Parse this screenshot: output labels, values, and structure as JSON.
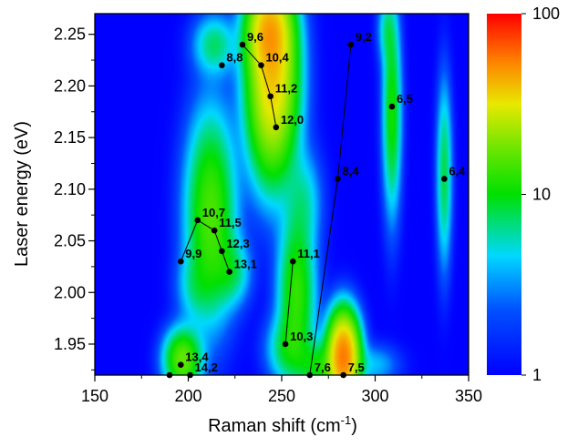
{
  "chart_data": {
    "type": "heatmap",
    "xlabel": "Raman shift (cm",
    "xlabel_sup": "-1",
    "xlabel_end": ")",
    "ylabel": "Laser energy (eV)",
    "xlim": [
      150,
      350
    ],
    "ylim": [
      1.92,
      2.27
    ],
    "x_ticks": [
      "150",
      "200",
      "250",
      "300",
      "350"
    ],
    "x_tick_values": [
      150,
      200,
      250,
      300,
      350
    ],
    "y_ticks": [
      "1.95",
      "2.00",
      "2.05",
      "2.10",
      "2.15",
      "2.20",
      "2.25"
    ],
    "y_tick_values": [
      1.95,
      2.0,
      2.05,
      2.1,
      2.15,
      2.2,
      2.25
    ],
    "colorbar": {
      "scale": "log",
      "min": 1,
      "max": 100,
      "tick_labels": [
        "1",
        "10",
        "100"
      ],
      "tick_values": [
        1,
        10,
        100
      ]
    },
    "points": [
      {
        "label": "9,6",
        "x": 229,
        "y": 2.24
      },
      {
        "label": "8,8",
        "x": 218,
        "y": 2.22
      },
      {
        "label": "10,4",
        "x": 239,
        "y": 2.22
      },
      {
        "label": "11,2",
        "x": 244,
        "y": 2.19
      },
      {
        "label": "12,0",
        "x": 247,
        "y": 2.16
      },
      {
        "label": "9,2",
        "x": 287,
        "y": 2.24
      },
      {
        "label": "6,5",
        "x": 309,
        "y": 2.18
      },
      {
        "label": "8,4",
        "x": 280,
        "y": 2.11
      },
      {
        "label": "6,4",
        "x": 337,
        "y": 2.11
      },
      {
        "label": "10,7",
        "x": 205,
        "y": 2.07
      },
      {
        "label": "11,5",
        "x": 214,
        "y": 2.06
      },
      {
        "label": "12,3",
        "x": 218,
        "y": 2.04
      },
      {
        "label": "13,1",
        "x": 222,
        "y": 2.02
      },
      {
        "label": "9,9",
        "x": 196,
        "y": 2.03
      },
      {
        "label": "11,1",
        "x": 256,
        "y": 2.03
      },
      {
        "label": "10,3",
        "x": 252,
        "y": 1.95
      },
      {
        "label": "13,4",
        "x": 196,
        "y": 1.93
      },
      {
        "label": "14,2",
        "x": 201,
        "y": 1.92
      },
      {
        "label": "7,6",
        "x": 265,
        "y": 1.92
      },
      {
        "label": "7,5",
        "x": 283,
        "y": 1.92
      },
      {
        "label": "",
        "x": 190,
        "y": 1.92
      }
    ],
    "family_lines": [
      [
        "9,6",
        "10,4",
        "11,2",
        "12,0"
      ],
      [
        "10,7",
        "11,5",
        "12,3",
        "13,1"
      ],
      [
        "10,7",
        "9,9"
      ],
      [
        "11,1",
        "10,3"
      ],
      [
        "9,2",
        "8,4",
        "7,6"
      ]
    ],
    "intensity_blobs": [
      {
        "x": 245,
        "y": 2.205,
        "sx": 8,
        "sy": 0.055,
        "amp": 35
      },
      {
        "x": 243,
        "y": 2.255,
        "sx": 7,
        "sy": 0.025,
        "amp": 25
      },
      {
        "x": 214,
        "y": 2.24,
        "sx": 7,
        "sy": 0.018,
        "amp": 6
      },
      {
        "x": 212,
        "y": 2.075,
        "sx": 8,
        "sy": 0.06,
        "amp": 14
      },
      {
        "x": 224,
        "y": 2.02,
        "sx": 6,
        "sy": 0.02,
        "amp": 5
      },
      {
        "x": 258,
        "y": 2.0,
        "sx": 6,
        "sy": 0.045,
        "amp": 12
      },
      {
        "x": 262,
        "y": 2.09,
        "sx": 6,
        "sy": 0.03,
        "amp": 4
      },
      {
        "x": 253,
        "y": 1.945,
        "sx": 7,
        "sy": 0.02,
        "amp": 6
      },
      {
        "x": 283,
        "y": 1.938,
        "sx": 5,
        "sy": 0.025,
        "amp": 55
      },
      {
        "x": 269,
        "y": 1.928,
        "sx": 6,
        "sy": 0.015,
        "amp": 8
      },
      {
        "x": 197,
        "y": 1.935,
        "sx": 6,
        "sy": 0.018,
        "amp": 16
      },
      {
        "x": 309,
        "y": 2.175,
        "sx": 3,
        "sy": 0.06,
        "amp": 10
      },
      {
        "x": 306,
        "y": 2.255,
        "sx": 3,
        "sy": 0.02,
        "amp": 4
      },
      {
        "x": 337,
        "y": 2.115,
        "sx": 2.5,
        "sy": 0.055,
        "amp": 7
      },
      {
        "x": 203,
        "y": 2.005,
        "sx": 6,
        "sy": 0.02,
        "amp": 3
      },
      {
        "x": 300,
        "y": 1.93,
        "sx": 8,
        "sy": 0.012,
        "amp": 3
      }
    ]
  }
}
